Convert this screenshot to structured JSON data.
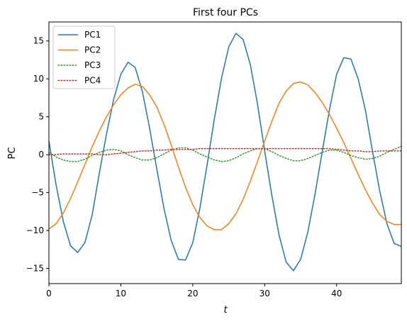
{
  "chart_data": {
    "type": "line",
    "title": "First four PCs",
    "xlabel": "t",
    "ylabel": "PC",
    "xlim": [
      0,
      49
    ],
    "ylim": [
      -17,
      17.5
    ],
    "xticks": [
      0,
      10,
      20,
      30,
      40
    ],
    "xtick_labels": [
      "0",
      "10",
      "20",
      "30",
      "40"
    ],
    "yticks": [
      -15,
      -10,
      -5,
      0,
      5,
      10,
      15
    ],
    "ytick_labels": [
      "−15",
      "−10",
      "−5",
      "0",
      "5",
      "10",
      "15"
    ],
    "grid": false,
    "legend": "top-left",
    "x": [
      0,
      1,
      2,
      3,
      4,
      5,
      6,
      7,
      8,
      9,
      10,
      11,
      12,
      13,
      14,
      15,
      16,
      17,
      18,
      19,
      20,
      21,
      22,
      23,
      24,
      25,
      26,
      27,
      28,
      29,
      30,
      31,
      32,
      33,
      34,
      35,
      36,
      37,
      38,
      39,
      40,
      41,
      42,
      43,
      44,
      45,
      46,
      47,
      48,
      49
    ],
    "series": [
      {
        "name": "PC1",
        "color": "#1f77b4",
        "dash": "solid",
        "values": [
          1.8,
          -4.0,
          -8.8,
          -12.0,
          -12.9,
          -11.6,
          -8.0,
          -2.5,
          2.7,
          7.3,
          10.6,
          12.2,
          11.5,
          8.3,
          3.5,
          -1.9,
          -7.1,
          -11.3,
          -13.8,
          -13.9,
          -11.6,
          -7.0,
          -1.3,
          4.7,
          10.1,
          14.2,
          16.0,
          15.2,
          11.9,
          6.7,
          0.5,
          -5.4,
          -10.6,
          -14.2,
          -15.3,
          -13.8,
          -10.2,
          -5.2,
          0.4,
          5.9,
          10.6,
          12.8,
          12.6,
          10.0,
          5.9,
          0.4,
          -4.8,
          -9.1,
          -11.7,
          -12.1
        ]
      },
      {
        "name": "PC2",
        "color": "#ff7f0e",
        "dash": "solid",
        "values": [
          -9.8,
          -9.1,
          -7.7,
          -5.8,
          -3.6,
          -1.3,
          1.0,
          3.1,
          5.0,
          6.6,
          7.9,
          8.8,
          9.3,
          9.0,
          7.9,
          6.3,
          4.0,
          1.3,
          -1.6,
          -4.3,
          -6.6,
          -8.3,
          -9.4,
          -9.9,
          -9.9,
          -9.1,
          -7.8,
          -5.9,
          -3.5,
          -0.9,
          1.8,
          4.4,
          6.8,
          8.4,
          9.4,
          9.6,
          9.2,
          8.2,
          6.9,
          5.3,
          3.5,
          1.6,
          -0.5,
          -2.6,
          -4.6,
          -6.4,
          -7.9,
          -8.8,
          -9.2,
          -9.2
        ]
      },
      {
        "name": "PC3",
        "color": "#2ca02c",
        "dash": "dotted",
        "values": [
          0.3,
          -0.3,
          -0.7,
          -0.9,
          -0.9,
          -0.6,
          -0.1,
          0.3,
          0.6,
          0.7,
          0.5,
          0.0,
          -0.4,
          -0.7,
          -0.7,
          -0.4,
          0.1,
          0.6,
          0.9,
          0.9,
          0.6,
          0.1,
          -0.3,
          -0.7,
          -0.9,
          -0.8,
          -0.4,
          0.1,
          0.5,
          0.8,
          0.8,
          0.4,
          -0.1,
          -0.5,
          -0.8,
          -0.8,
          -0.5,
          -0.1,
          0.3,
          0.6,
          0.6,
          0.3,
          -0.1,
          -0.4,
          -0.6,
          -0.5,
          -0.2,
          0.3,
          0.7,
          1.1
        ]
      },
      {
        "name": "PC4",
        "color": "#d62728",
        "dash": "dotted",
        "values": [
          0.0,
          0.0,
          0.1,
          0.1,
          0.1,
          0.1,
          0.1,
          0.0,
          0.0,
          0.1,
          0.2,
          0.3,
          0.4,
          0.5,
          0.5,
          0.6,
          0.6,
          0.7,
          0.7,
          0.7,
          0.7,
          0.8,
          0.8,
          0.8,
          0.8,
          0.8,
          0.8,
          0.8,
          0.8,
          0.8,
          0.8,
          0.8,
          0.8,
          0.8,
          0.8,
          0.8,
          0.8,
          0.8,
          0.8,
          0.8,
          0.7,
          0.6,
          0.5,
          0.5,
          0.4,
          0.4,
          0.5,
          0.5,
          0.5,
          0.5
        ]
      }
    ]
  }
}
